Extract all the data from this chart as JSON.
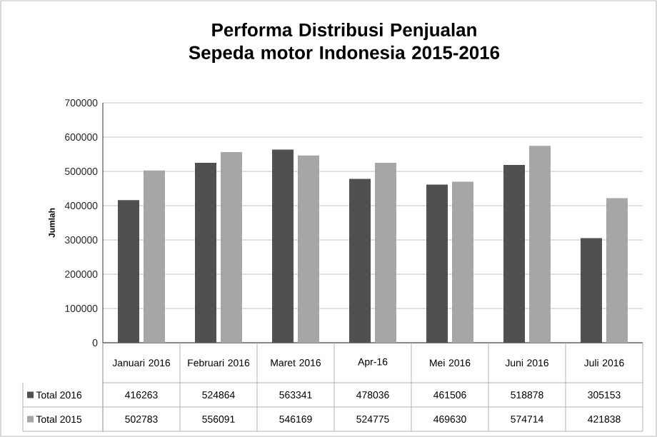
{
  "chart_data": {
    "type": "bar",
    "title": "Performa Distribusi Penjualan Sepeda motor Indonesia 2015-2016",
    "ylabel": "Jumlah",
    "categories": [
      "Januari 2016",
      "Februari 2016",
      "Maret 2016",
      "Apr-16",
      "Mei 2016",
      "Juni 2016",
      "Juli 2016"
    ],
    "series": [
      {
        "name": "Total 2016",
        "color": "#505050",
        "values": [
          416263,
          524864,
          563341,
          478036,
          461506,
          518878,
          305153
        ]
      },
      {
        "name": "Total 2015",
        "color": "#a6a6a6",
        "values": [
          502783,
          556091,
          546169,
          524775,
          469630,
          574714,
          421838
        ]
      }
    ],
    "ylim": [
      0,
      700000
    ],
    "yticks": [
      0,
      100000,
      200000,
      300000,
      400000,
      500000,
      600000,
      700000
    ],
    "grid": "y",
    "legend": "bottom",
    "data_labels": true
  }
}
